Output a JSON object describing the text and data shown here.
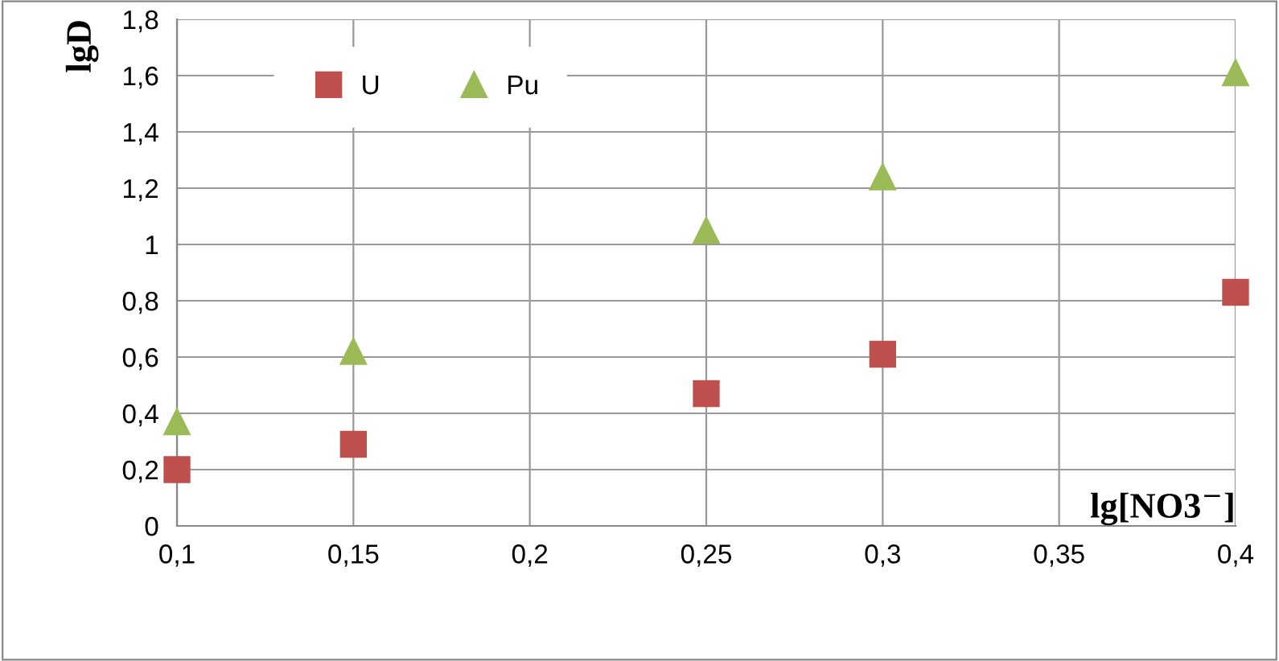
{
  "chart_data": {
    "type": "scatter",
    "xlabel": "lg[NO3$^{−}$]",
    "ylabel": "lgD",
    "x": [
      0.1,
      0.15,
      0.25,
      0.3,
      0.4
    ],
    "series": [
      {
        "name": "U",
        "color": "#c0504d",
        "marker": "square",
        "values": [
          0.2,
          0.29,
          0.47,
          0.61,
          0.83
        ]
      },
      {
        "name": "Pu",
        "color": "#9bbb59",
        "marker": "triangle",
        "values": [
          0.37,
          0.62,
          1.05,
          1.24,
          1.61
        ]
      }
    ],
    "xlim": [
      0.1,
      0.4
    ],
    "xticks": [
      {
        "value": 0.1,
        "label": "0,1"
      },
      {
        "value": 0.15,
        "label": "0,15"
      },
      {
        "value": 0.2,
        "label": "0,2"
      },
      {
        "value": 0.25,
        "label": "0,25"
      },
      {
        "value": 0.3,
        "label": "0,3"
      },
      {
        "value": 0.35,
        "label": "0,35"
      },
      {
        "value": 0.4,
        "label": "0,4"
      }
    ],
    "ylim": [
      0,
      1.8
    ],
    "yticks": [
      0,
      {
        "value": 0.2,
        "label": "0,2"
      },
      {
        "value": 0.4,
        "label": "0,4"
      },
      {
        "value": 0.6,
        "label": "0,6"
      },
      {
        "value": 0.8,
        "label": "0,8"
      },
      1,
      {
        "value": 1.2,
        "label": "1,2"
      },
      {
        "value": 1.4,
        "label": "1,4"
      },
      {
        "value": 1.6,
        "label": "1,6"
      },
      {
        "value": 1.8,
        "label": "1,8"
      }
    ],
    "grid": true,
    "legend": "top left"
  }
}
